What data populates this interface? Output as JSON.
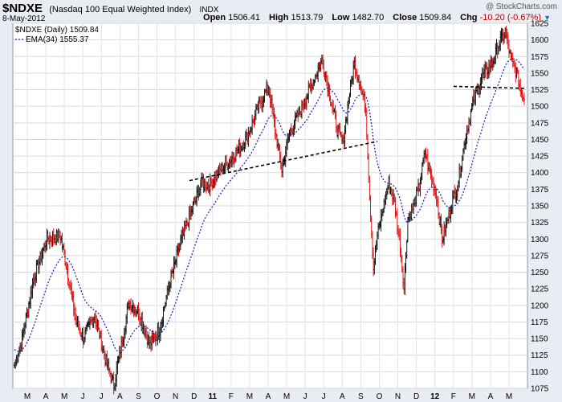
{
  "header": {
    "symbol": "$NDXE",
    "description": "(Nasdaq 100 Equal Weighted Index)",
    "exchange": "INDX",
    "date": "8-May-2012",
    "watermark": "@ StockCharts.com",
    "open_label": "Open",
    "open": "1506.41",
    "high_label": "High",
    "high": "1513.79",
    "low_label": "Low",
    "low": "1482.70",
    "close_label": "Close",
    "close": "1509.84",
    "chg_label": "Chg",
    "chg": "-10.20 (-0.67%)"
  },
  "chart_data": {
    "type": "candlestick",
    "legend": [
      {
        "text": "$NDXE (Daily) 1509.84",
        "color": "#000000"
      },
      {
        "text": "EMA(34) 1555.37",
        "color": "#2a2aa8"
      }
    ],
    "y_axis": {
      "position": "right",
      "min": 1075,
      "max": 1625,
      "ticks": [
        1075,
        1100,
        1125,
        1150,
        1175,
        1200,
        1225,
        1250,
        1275,
        1300,
        1325,
        1350,
        1375,
        1400,
        1425,
        1450,
        1475,
        1500,
        1525,
        1550,
        1575,
        1600,
        1625
      ]
    },
    "x_axis": {
      "labels": [
        "M",
        "A",
        "M",
        "J",
        "J",
        "A",
        "S",
        "O",
        "N",
        "D",
        "11",
        "F",
        "M",
        "A",
        "M",
        "J",
        "J",
        "A",
        "S",
        "O",
        "N",
        "D",
        "12",
        "F",
        "M",
        "A",
        "M"
      ],
      "bold_labels": [
        "11",
        "12"
      ]
    },
    "grid": true,
    "price_keypoints": [
      [
        0,
        1110
      ],
      [
        8,
        1150
      ],
      [
        20,
        1240
      ],
      [
        34,
        1300
      ],
      [
        48,
        1305
      ],
      [
        55,
        1255
      ],
      [
        64,
        1180
      ],
      [
        72,
        1150
      ],
      [
        84,
        1185
      ],
      [
        96,
        1115
      ],
      [
        104,
        1080
      ],
      [
        112,
        1140
      ],
      [
        120,
        1205
      ],
      [
        130,
        1190
      ],
      [
        142,
        1140
      ],
      [
        152,
        1165
      ],
      [
        162,
        1230
      ],
      [
        174,
        1295
      ],
      [
        186,
        1345
      ],
      [
        196,
        1385
      ],
      [
        204,
        1380
      ],
      [
        216,
        1405
      ],
      [
        230,
        1425
      ],
      [
        244,
        1455
      ],
      [
        256,
        1500
      ],
      [
        266,
        1530
      ],
      [
        274,
        1455
      ],
      [
        280,
        1405
      ],
      [
        288,
        1460
      ],
      [
        300,
        1495
      ],
      [
        312,
        1535
      ],
      [
        322,
        1570
      ],
      [
        330,
        1520
      ],
      [
        338,
        1465
      ],
      [
        344,
        1445
      ],
      [
        350,
        1510
      ],
      [
        356,
        1565
      ],
      [
        362,
        1535
      ],
      [
        368,
        1495
      ],
      [
        372,
        1365
      ],
      [
        376,
        1255
      ],
      [
        380,
        1305
      ],
      [
        386,
        1345
      ],
      [
        392,
        1385
      ],
      [
        398,
        1355
      ],
      [
        404,
        1290
      ],
      [
        408,
        1225
      ],
      [
        412,
        1330
      ],
      [
        418,
        1350
      ],
      [
        424,
        1380
      ],
      [
        430,
        1430
      ],
      [
        436,
        1395
      ],
      [
        442,
        1365
      ],
      [
        448,
        1300
      ],
      [
        454,
        1330
      ],
      [
        458,
        1355
      ],
      [
        464,
        1380
      ],
      [
        472,
        1450
      ],
      [
        480,
        1505
      ],
      [
        490,
        1545
      ],
      [
        500,
        1565
      ],
      [
        508,
        1595
      ],
      [
        514,
        1612
      ],
      [
        520,
        1570
      ],
      [
        526,
        1550
      ],
      [
        530,
        1525
      ],
      [
        534,
        1510
      ]
    ],
    "ema_period": 34,
    "ema_last": 1555.37,
    "close_last": 1509.84,
    "trendlines": [
      {
        "x0": 1385,
        "y0": 1388,
        "x1": 1470,
        "y1": 1447,
        "note": "rising neckline"
      },
      {
        "x0": 1525,
        "y0": 1530,
        "x1": 1655,
        "y1": 1527,
        "note": "support"
      }
    ]
  }
}
